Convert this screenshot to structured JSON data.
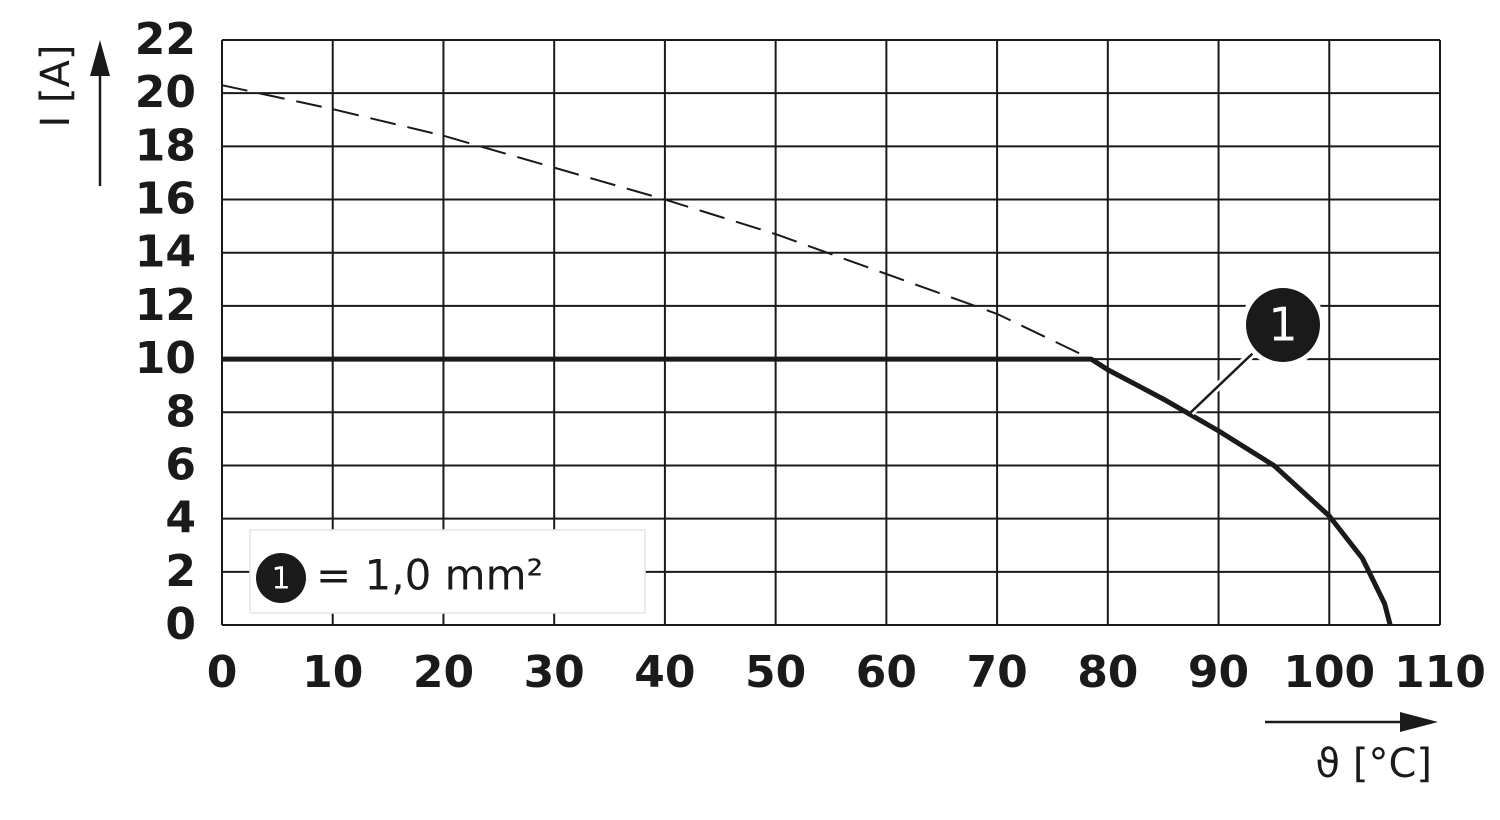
{
  "chart_data": {
    "type": "line",
    "x_label": "ϑ [°C]",
    "y_label": "I [A]",
    "xlim": [
      0,
      110
    ],
    "xticks": [
      0,
      10,
      20,
      30,
      40,
      50,
      60,
      70,
      80,
      90,
      100,
      110
    ],
    "ylim": [
      0,
      22
    ],
    "yticks": [
      0,
      2,
      4,
      6,
      8,
      10,
      12,
      14,
      16,
      18,
      20,
      22
    ],
    "grid": true,
    "series": [
      {
        "color": "#1a1a1a",
        "style": "dashed",
        "x": [
          0,
          10,
          20,
          30,
          40,
          50,
          60,
          70,
          78.5
        ],
        "values": [
          20.3,
          19.4,
          18.4,
          17.2,
          16.0,
          14.7,
          13.2,
          11.7,
          10
        ]
      },
      {
        "color": "#1a1a1a",
        "style": "solid",
        "x": [
          0,
          78.5,
          80,
          85,
          90,
          95,
          100,
          103,
          105,
          105.5
        ],
        "values": [
          10,
          10,
          9.6,
          8.5,
          7.3,
          6.0,
          4.1,
          2.5,
          0.8,
          0
        ]
      }
    ],
    "annotation": {
      "text": "1",
      "x": 87.5,
      "y": 8
    },
    "legend": {
      "marker": "1",
      "label": "= 1,0 mm²"
    }
  }
}
